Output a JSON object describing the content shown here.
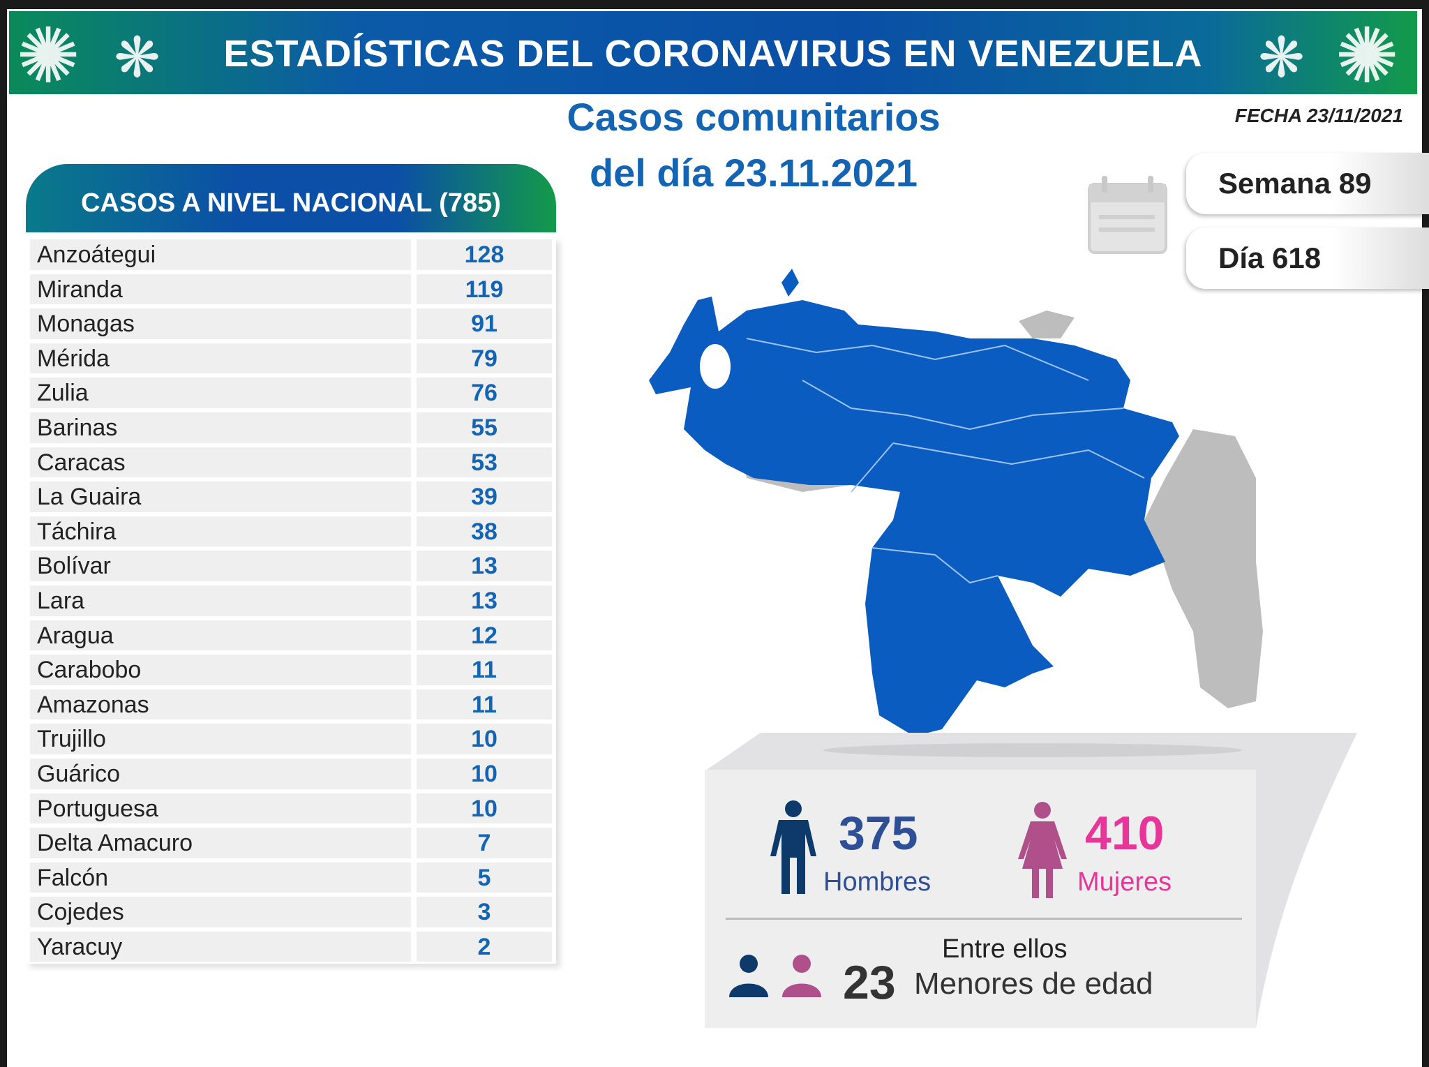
{
  "banner": {
    "title": "ESTADÍSTICAS DEL CORONAVIRUS EN VENEZUELA"
  },
  "subtitle": {
    "line1": "Casos comunitarios",
    "line2": "del día 23.11.2021"
  },
  "fecha": "FECHA 23/11/2021",
  "semana": "Semana 89",
  "dia": "Día 618",
  "table": {
    "header": "CASOS A NIVEL NACIONAL  (785)",
    "rows": [
      {
        "state": "Anzoátegui",
        "cases": "128"
      },
      {
        "state": "Miranda",
        "cases": "119"
      },
      {
        "state": "Monagas",
        "cases": "91"
      },
      {
        "state": "Mérida",
        "cases": "79"
      },
      {
        "state": "Zulia",
        "cases": "76"
      },
      {
        "state": "Barinas",
        "cases": "55"
      },
      {
        "state": "Caracas",
        "cases": "53"
      },
      {
        "state": "La Guaira",
        "cases": "39"
      },
      {
        "state": "Táchira",
        "cases": "38"
      },
      {
        "state": "Bolívar",
        "cases": "13"
      },
      {
        "state": "Lara",
        "cases": "13"
      },
      {
        "state": "Aragua",
        "cases": "12"
      },
      {
        "state": "Carabobo",
        "cases": "11"
      },
      {
        "state": "Amazonas",
        "cases": "11"
      },
      {
        "state": "Trujillo",
        "cases": "10"
      },
      {
        "state": "Guárico",
        "cases": "10"
      },
      {
        "state": "Portuguesa",
        "cases": "10"
      },
      {
        "state": "Delta Amacuro",
        "cases": "7"
      },
      {
        "state": "Falcón",
        "cases": "5"
      },
      {
        "state": "Cojedes",
        "cases": "3"
      },
      {
        "state": "Yaracuy",
        "cases": "2"
      }
    ]
  },
  "gender": {
    "men_count": "375",
    "men_label": "Hombres",
    "women_count": "410",
    "women_label": "Mujeres",
    "minors_intro": "Entre ellos",
    "minors_count": "23",
    "minors_label": "Menores de edad"
  },
  "colors": {
    "map_blue": "#0a5cc0",
    "map_gray": "#bdbdbd",
    "men": "#0d3a6a",
    "women": "#b0508a",
    "women_text": "#e8359a",
    "title_blue": "#1464b4"
  }
}
